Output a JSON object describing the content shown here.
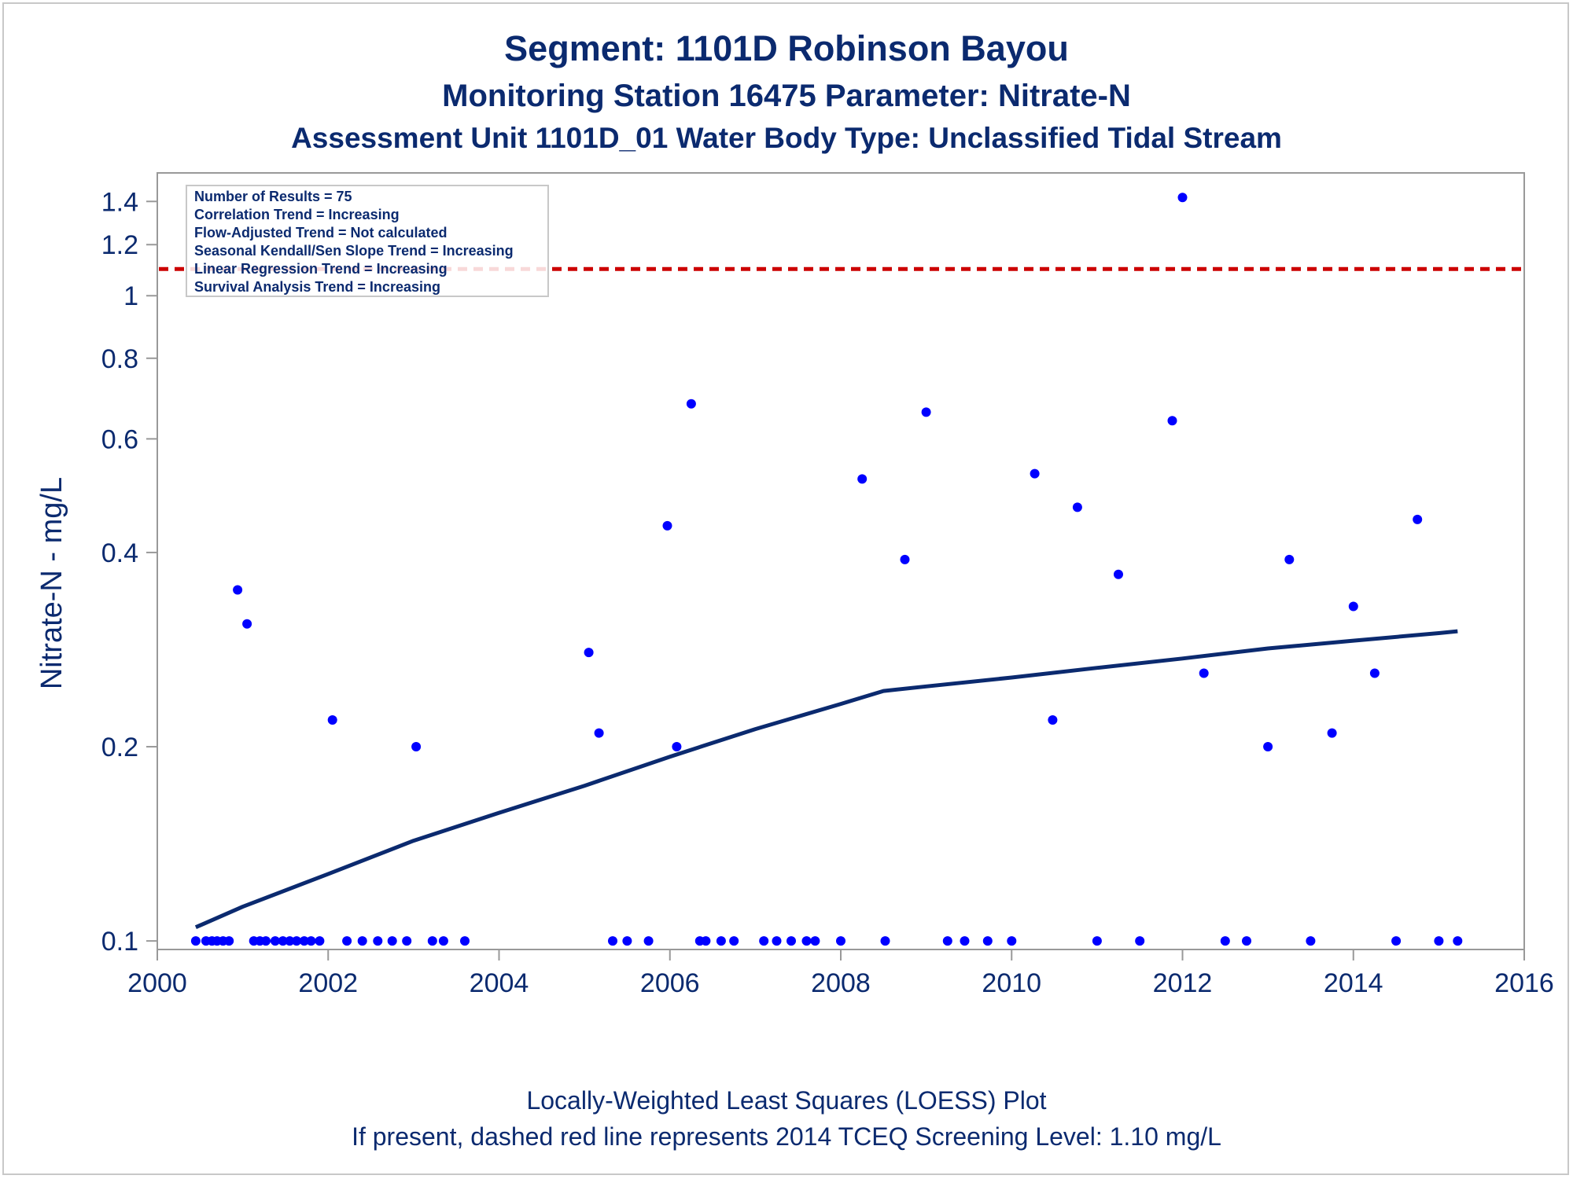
{
  "title": {
    "line1": "Segment: 1101D  Robinson Bayou",
    "line2": "Monitoring Station 16475 Parameter: Nitrate-N",
    "line3": "Assessment Unit 1101D_01   Water Body Type: Unclassified Tidal Stream"
  },
  "footnote": {
    "line1": "Locally-Weighted Least Squares (LOESS) Plot",
    "line2": "If present, dashed red line represents 2014 TCEQ Screening Level: 1.10 mg/L"
  },
  "stats_box": [
    "Number of Results = 75",
    "Correlation Trend = Increasing",
    "Flow-Adjusted Trend = Not calculated",
    "Seasonal Kendall/Sen Slope Trend = Increasing",
    "Linear Regression Trend = Increasing",
    "Survival Analysis Trend = Increasing"
  ],
  "colors": {
    "text": "#0b2a6f",
    "points": "#0000ff",
    "loess": "#0b2a6f",
    "screening_line": "#cc0000",
    "axis": "#999999"
  },
  "chart_data": {
    "type": "scatter",
    "ylabel": "Nitrate-N - mg/L",
    "xlabel": "",
    "y_scale": "log",
    "xlim": [
      2000,
      2016
    ],
    "ylim": [
      0.097,
      1.55
    ],
    "x_ticks": [
      2000,
      2002,
      2004,
      2006,
      2008,
      2010,
      2012,
      2014,
      2016
    ],
    "y_ticks": [
      0.1,
      0.2,
      0.4,
      0.6,
      0.8,
      1,
      1.2,
      1.4
    ],
    "y_tick_labels": [
      "0.1",
      "0.2",
      "0.4",
      "0.6",
      "0.8",
      "1",
      "1.2",
      "1.4"
    ],
    "grid": false,
    "legend": "top-left",
    "screening_level": 1.1,
    "points": [
      {
        "x": 2000.45,
        "y": 0.1
      },
      {
        "x": 2000.57,
        "y": 0.1
      },
      {
        "x": 2000.64,
        "y": 0.1
      },
      {
        "x": 2000.7,
        "y": 0.1
      },
      {
        "x": 2000.77,
        "y": 0.1
      },
      {
        "x": 2000.84,
        "y": 0.1
      },
      {
        "x": 2000.94,
        "y": 0.35
      },
      {
        "x": 2001.05,
        "y": 0.31
      },
      {
        "x": 2001.13,
        "y": 0.1
      },
      {
        "x": 2001.2,
        "y": 0.1
      },
      {
        "x": 2001.27,
        "y": 0.1
      },
      {
        "x": 2001.38,
        "y": 0.1
      },
      {
        "x": 2001.47,
        "y": 0.1
      },
      {
        "x": 2001.55,
        "y": 0.1
      },
      {
        "x": 2001.63,
        "y": 0.1
      },
      {
        "x": 2001.72,
        "y": 0.1
      },
      {
        "x": 2001.8,
        "y": 0.1
      },
      {
        "x": 2001.9,
        "y": 0.1
      },
      {
        "x": 2002.05,
        "y": 0.22
      },
      {
        "x": 2002.22,
        "y": 0.1
      },
      {
        "x": 2002.4,
        "y": 0.1
      },
      {
        "x": 2002.58,
        "y": 0.1
      },
      {
        "x": 2002.75,
        "y": 0.1
      },
      {
        "x": 2002.92,
        "y": 0.1
      },
      {
        "x": 2003.03,
        "y": 0.2
      },
      {
        "x": 2003.22,
        "y": 0.1
      },
      {
        "x": 2003.35,
        "y": 0.1
      },
      {
        "x": 2003.6,
        "y": 0.1
      },
      {
        "x": 2005.05,
        "y": 0.28
      },
      {
        "x": 2005.17,
        "y": 0.21
      },
      {
        "x": 2005.33,
        "y": 0.1
      },
      {
        "x": 2005.5,
        "y": 0.1
      },
      {
        "x": 2005.75,
        "y": 0.1
      },
      {
        "x": 2005.97,
        "y": 0.44
      },
      {
        "x": 2006.08,
        "y": 0.2
      },
      {
        "x": 2006.25,
        "y": 0.68
      },
      {
        "x": 2006.35,
        "y": 0.1
      },
      {
        "x": 2006.42,
        "y": 0.1
      },
      {
        "x": 2006.6,
        "y": 0.1
      },
      {
        "x": 2006.75,
        "y": 0.1
      },
      {
        "x": 2007.1,
        "y": 0.1
      },
      {
        "x": 2007.25,
        "y": 0.1
      },
      {
        "x": 2007.42,
        "y": 0.1
      },
      {
        "x": 2007.6,
        "y": 0.1
      },
      {
        "x": 2007.7,
        "y": 0.1
      },
      {
        "x": 2008.0,
        "y": 0.1
      },
      {
        "x": 2008.25,
        "y": 0.52
      },
      {
        "x": 2008.52,
        "y": 0.1
      },
      {
        "x": 2008.75,
        "y": 0.39
      },
      {
        "x": 2009.0,
        "y": 0.66
      },
      {
        "x": 2009.25,
        "y": 0.1
      },
      {
        "x": 2009.45,
        "y": 0.1
      },
      {
        "x": 2009.72,
        "y": 0.1
      },
      {
        "x": 2010.0,
        "y": 0.1
      },
      {
        "x": 2010.27,
        "y": 0.53
      },
      {
        "x": 2010.48,
        "y": 0.22
      },
      {
        "x": 2010.77,
        "y": 0.47
      },
      {
        "x": 2011.0,
        "y": 0.1
      },
      {
        "x": 2011.25,
        "y": 0.37
      },
      {
        "x": 2011.5,
        "y": 0.1
      },
      {
        "x": 2011.88,
        "y": 0.64
      },
      {
        "x": 2012.0,
        "y": 1.42
      },
      {
        "x": 2012.25,
        "y": 0.26
      },
      {
        "x": 2012.5,
        "y": 0.1
      },
      {
        "x": 2012.75,
        "y": 0.1
      },
      {
        "x": 2013.0,
        "y": 0.2
      },
      {
        "x": 2013.25,
        "y": 0.39
      },
      {
        "x": 2013.5,
        "y": 0.1
      },
      {
        "x": 2013.75,
        "y": 0.21
      },
      {
        "x": 2014.0,
        "y": 0.33
      },
      {
        "x": 2014.25,
        "y": 0.26
      },
      {
        "x": 2014.5,
        "y": 0.1
      },
      {
        "x": 2014.75,
        "y": 0.45
      },
      {
        "x": 2015.0,
        "y": 0.1
      },
      {
        "x": 2015.22,
        "y": 0.1
      }
    ],
    "loess": [
      {
        "x": 2000.45,
        "y": 0.105
      },
      {
        "x": 2001.0,
        "y": 0.113
      },
      {
        "x": 2002.0,
        "y": 0.127
      },
      {
        "x": 2003.0,
        "y": 0.143
      },
      {
        "x": 2004.0,
        "y": 0.158
      },
      {
        "x": 2005.0,
        "y": 0.174
      },
      {
        "x": 2006.0,
        "y": 0.193
      },
      {
        "x": 2007.0,
        "y": 0.213
      },
      {
        "x": 2008.0,
        "y": 0.233
      },
      {
        "x": 2008.5,
        "y": 0.244
      },
      {
        "x": 2009.0,
        "y": 0.248
      },
      {
        "x": 2010.0,
        "y": 0.256
      },
      {
        "x": 2011.0,
        "y": 0.265
      },
      {
        "x": 2012.0,
        "y": 0.274
      },
      {
        "x": 2013.0,
        "y": 0.284
      },
      {
        "x": 2014.0,
        "y": 0.292
      },
      {
        "x": 2015.0,
        "y": 0.3
      },
      {
        "x": 2015.22,
        "y": 0.302
      }
    ]
  }
}
